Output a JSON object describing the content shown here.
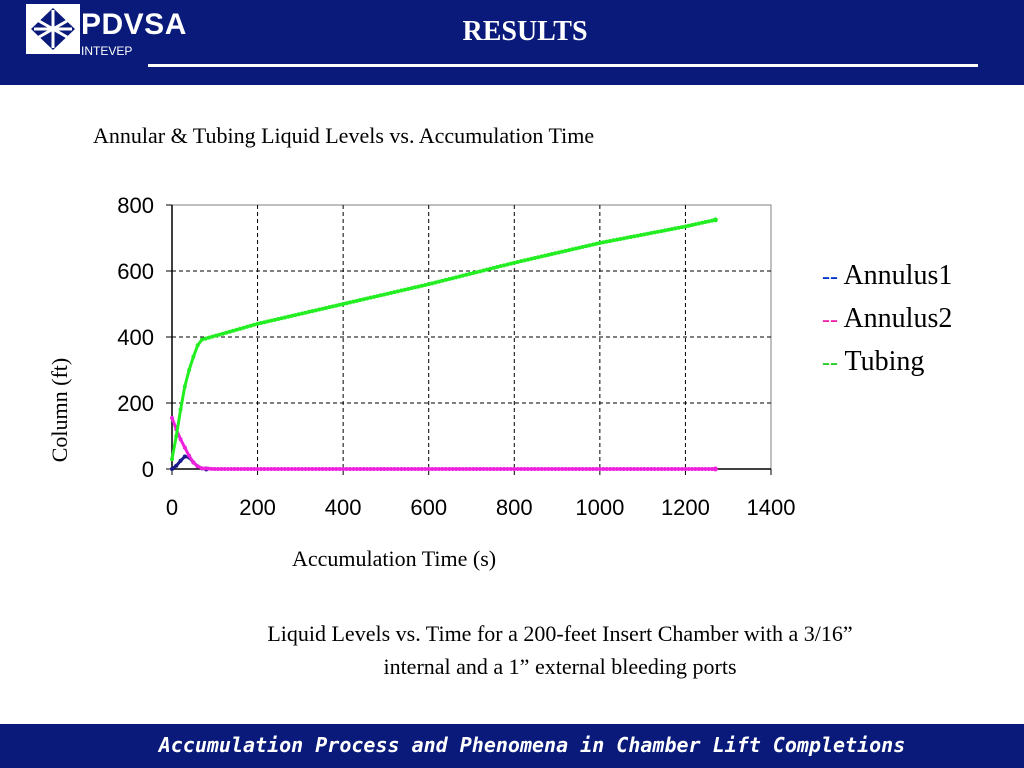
{
  "header": {
    "brand": "PDVSA",
    "subbrand": "INTEVEP",
    "title": "RESULTS",
    "logo_icon": "pdvsa-logo-icon",
    "color": "#0a1a7a"
  },
  "chart_data": {
    "type": "line",
    "title": "Annular &  Tubing Liquid Levels vs. Accumulation Time",
    "xlabel": "Accumulation Time (s)",
    "ylabel": "Column (ft)",
    "xlim": [
      0,
      1400
    ],
    "ylim": [
      0,
      800
    ],
    "xticks": [
      0,
      200,
      400,
      600,
      800,
      1000,
      1200,
      1400
    ],
    "yticks": [
      0,
      200,
      400,
      600,
      800
    ],
    "grid": true,
    "legend_position": "right",
    "series": [
      {
        "name": "Annulus1",
        "color": "#1a1a8c",
        "legend_color": "#0033cc",
        "x": [
          0,
          10,
          20,
          30,
          40,
          50,
          60,
          70,
          80
        ],
        "y": [
          0,
          10,
          25,
          38,
          35,
          20,
          8,
          2,
          0
        ]
      },
      {
        "name": "Annulus2",
        "color": "#ee22dd",
        "legend_color": "#ee22aa",
        "x": [
          0,
          10,
          20,
          30,
          40,
          50,
          60,
          70,
          100,
          200,
          400,
          600,
          800,
          1000,
          1200,
          1270
        ],
        "y": [
          155,
          120,
          90,
          65,
          40,
          20,
          8,
          2,
          0,
          0,
          0,
          0,
          0,
          0,
          0,
          0
        ]
      },
      {
        "name": "Tubing",
        "color": "#22ee22",
        "legend_color": "#22cc22",
        "x": [
          0,
          10,
          20,
          30,
          40,
          50,
          60,
          70,
          200,
          400,
          600,
          800,
          1000,
          1200,
          1270
        ],
        "y": [
          30,
          100,
          180,
          250,
          300,
          340,
          375,
          392,
          440,
          500,
          560,
          625,
          685,
          735,
          755
        ]
      }
    ]
  },
  "legend": {
    "marker": "--",
    "items": [
      "Annulus1",
      "Annulus2",
      "Tubing"
    ]
  },
  "caption": {
    "line1": "Liquid Levels vs. Time for a 200-feet Insert Chamber with a 3/16”",
    "line2": "internal and a 1” external bleeding ports"
  },
  "footer": {
    "text": "Accumulation Process and Phenomena in Chamber Lift Completions"
  }
}
